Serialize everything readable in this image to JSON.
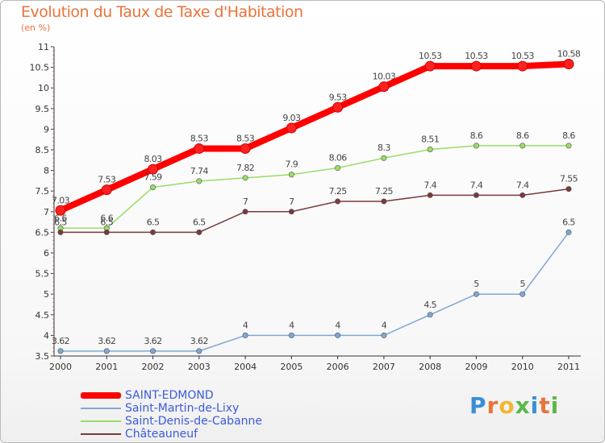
{
  "title": "Evolution du Taux de Taxe d'Habitation",
  "unit": "(en %)",
  "logo": "Proxiti",
  "chart_data": {
    "type": "line",
    "x": [
      "2000",
      "2001",
      "2002",
      "2003",
      "2004",
      "2005",
      "2006",
      "2007",
      "2008",
      "2009",
      "2010",
      "2011"
    ],
    "ylim": [
      3.5,
      11
    ],
    "yticks": [
      "3.5",
      "4",
      "4.5",
      "5",
      "5.5",
      "6",
      "6.5",
      "7",
      "7.5",
      "8",
      "8.5",
      "9",
      "9.5",
      "10",
      "10.5",
      "11"
    ],
    "grid": false,
    "series": [
      {
        "name": "SAINT-EDMOND",
        "color": "#ff0000",
        "values": [
          7.03,
          7.53,
          8.03,
          8.53,
          8.53,
          9.03,
          9.53,
          10.03,
          10.53,
          10.53,
          10.53,
          10.58
        ],
        "labels": [
          "7.03",
          "7.53",
          "8.03",
          "8.53",
          "8.53",
          "9.03",
          "9.53",
          "10.03",
          "10.53",
          "10.53",
          "10.53",
          "10.58"
        ]
      },
      {
        "name": "Saint-Martin-de-Lixy",
        "color": "#7fa7d4",
        "values": [
          3.62,
          3.62,
          3.62,
          3.62,
          4,
          4,
          4,
          4,
          4.5,
          5,
          5,
          6.5
        ],
        "labels": [
          "3.62",
          "3.62",
          "3.62",
          "3.62",
          "4",
          "4",
          "4",
          "4",
          "4.5",
          "5",
          "5",
          "6.5"
        ]
      },
      {
        "name": "Saint-Denis-de-Cabanne",
        "color": "#99dd66",
        "values": [
          6.6,
          6.6,
          7.59,
          7.74,
          7.82,
          7.9,
          8.06,
          8.3,
          8.51,
          8.6,
          8.6,
          8.6
        ],
        "labels": [
          "6.6",
          "6.6",
          "7.59",
          "7.74",
          "7.82",
          "7.9",
          "8.06",
          "8.3",
          "8.51",
          "8.6",
          "8.6",
          "8.6"
        ]
      },
      {
        "name": "Châteauneuf",
        "color": "#7a3a3a",
        "values": [
          6.5,
          6.5,
          6.5,
          6.5,
          7,
          7,
          7.25,
          7.25,
          7.4,
          7.4,
          7.4,
          7.55
        ],
        "labels": [
          "6.5",
          "6.5",
          "6.5",
          "6.5",
          "7",
          "7",
          "7.25",
          "7.25",
          "7.4",
          "7.4",
          "7.4",
          "7.55"
        ]
      }
    ]
  },
  "legend": {
    "items": [
      "SAINT-EDMOND",
      "Saint-Martin-de-Lixy",
      "Saint-Denis-de-Cabanne",
      "Châteauneuf"
    ]
  }
}
